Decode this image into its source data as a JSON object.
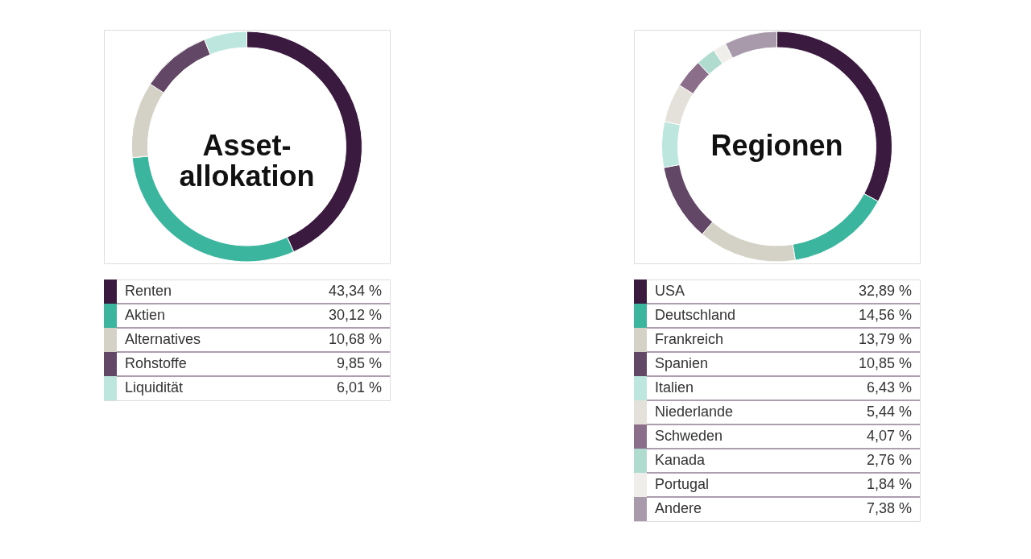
{
  "chart_data": [
    {
      "type": "donut",
      "title": "Asset-allokation",
      "legend": "bottom",
      "categories": [
        "Renten",
        "Aktien",
        "Alternatives",
        "Rohstoffe",
        "Liquidität"
      ],
      "values": [
        43.34,
        30.12,
        10.68,
        9.85,
        6.01
      ],
      "value_labels": [
        "43,34 %",
        "30,12 %",
        "10,68 %",
        "9,85 %",
        "6,01 %"
      ],
      "colors": [
        "#3a1a3e",
        "#3bb59e",
        "#d4d2c6",
        "#634766",
        "#bde6de"
      ]
    },
    {
      "type": "donut",
      "title": "Regionen",
      "legend": "bottom",
      "categories": [
        "USA",
        "Deutschland",
        "Frankreich",
        "Spanien",
        "Italien",
        "Niederlande",
        "Schweden",
        "Kanada",
        "Portugal",
        "Andere"
      ],
      "values": [
        32.89,
        14.56,
        13.79,
        10.85,
        6.43,
        5.44,
        4.07,
        2.76,
        1.84,
        7.38
      ],
      "value_labels": [
        "32,89 %",
        "14,56 %",
        "13,79 %",
        "10,85 %",
        "6,43 %",
        "5,44 %",
        "4,07 %",
        "2,76 %",
        "1,84 %",
        "7,38 %"
      ],
      "colors": [
        "#3a1a3e",
        "#3bb59e",
        "#d4d2c6",
        "#634766",
        "#bde6de",
        "#e3e1da",
        "#8a6e8a",
        "#b0dcd0",
        "#efeeea",
        "#a899ab"
      ]
    }
  ]
}
